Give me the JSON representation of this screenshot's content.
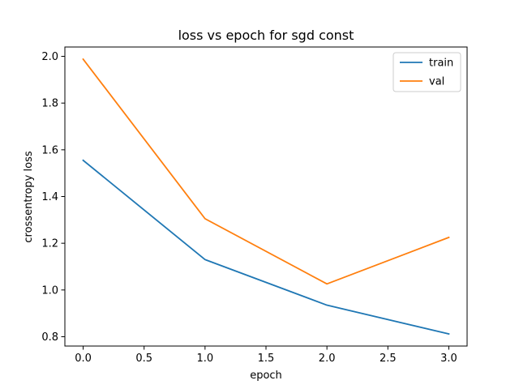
{
  "chart_data": {
    "type": "line",
    "title": "loss vs epoch for sgd const",
    "xlabel": "epoch",
    "ylabel": "crossentropy loss",
    "x": [
      0,
      1,
      2,
      3
    ],
    "xlim": [
      -0.15,
      3.15
    ],
    "ylim": [
      0.76,
      2.04
    ],
    "xticks": [
      0.0,
      0.5,
      1.0,
      1.5,
      2.0,
      2.5,
      3.0
    ],
    "xtick_labels": [
      "0.0",
      "0.5",
      "1.0",
      "1.5",
      "2.0",
      "2.5",
      "3.0"
    ],
    "yticks": [
      0.8,
      1.0,
      1.2,
      1.4,
      1.6,
      1.8,
      2.0
    ],
    "ytick_labels": [
      "0.8",
      "1.0",
      "1.2",
      "1.4",
      "1.6",
      "1.8",
      "2.0"
    ],
    "grid": false,
    "legend_position": "top-right",
    "series": [
      {
        "name": "train",
        "color": "#1f77b4",
        "values": [
          1.555,
          1.13,
          0.935,
          0.812
        ]
      },
      {
        "name": "val",
        "color": "#ff7f0e",
        "values": [
          1.988,
          1.305,
          1.026,
          1.225
        ]
      }
    ]
  }
}
